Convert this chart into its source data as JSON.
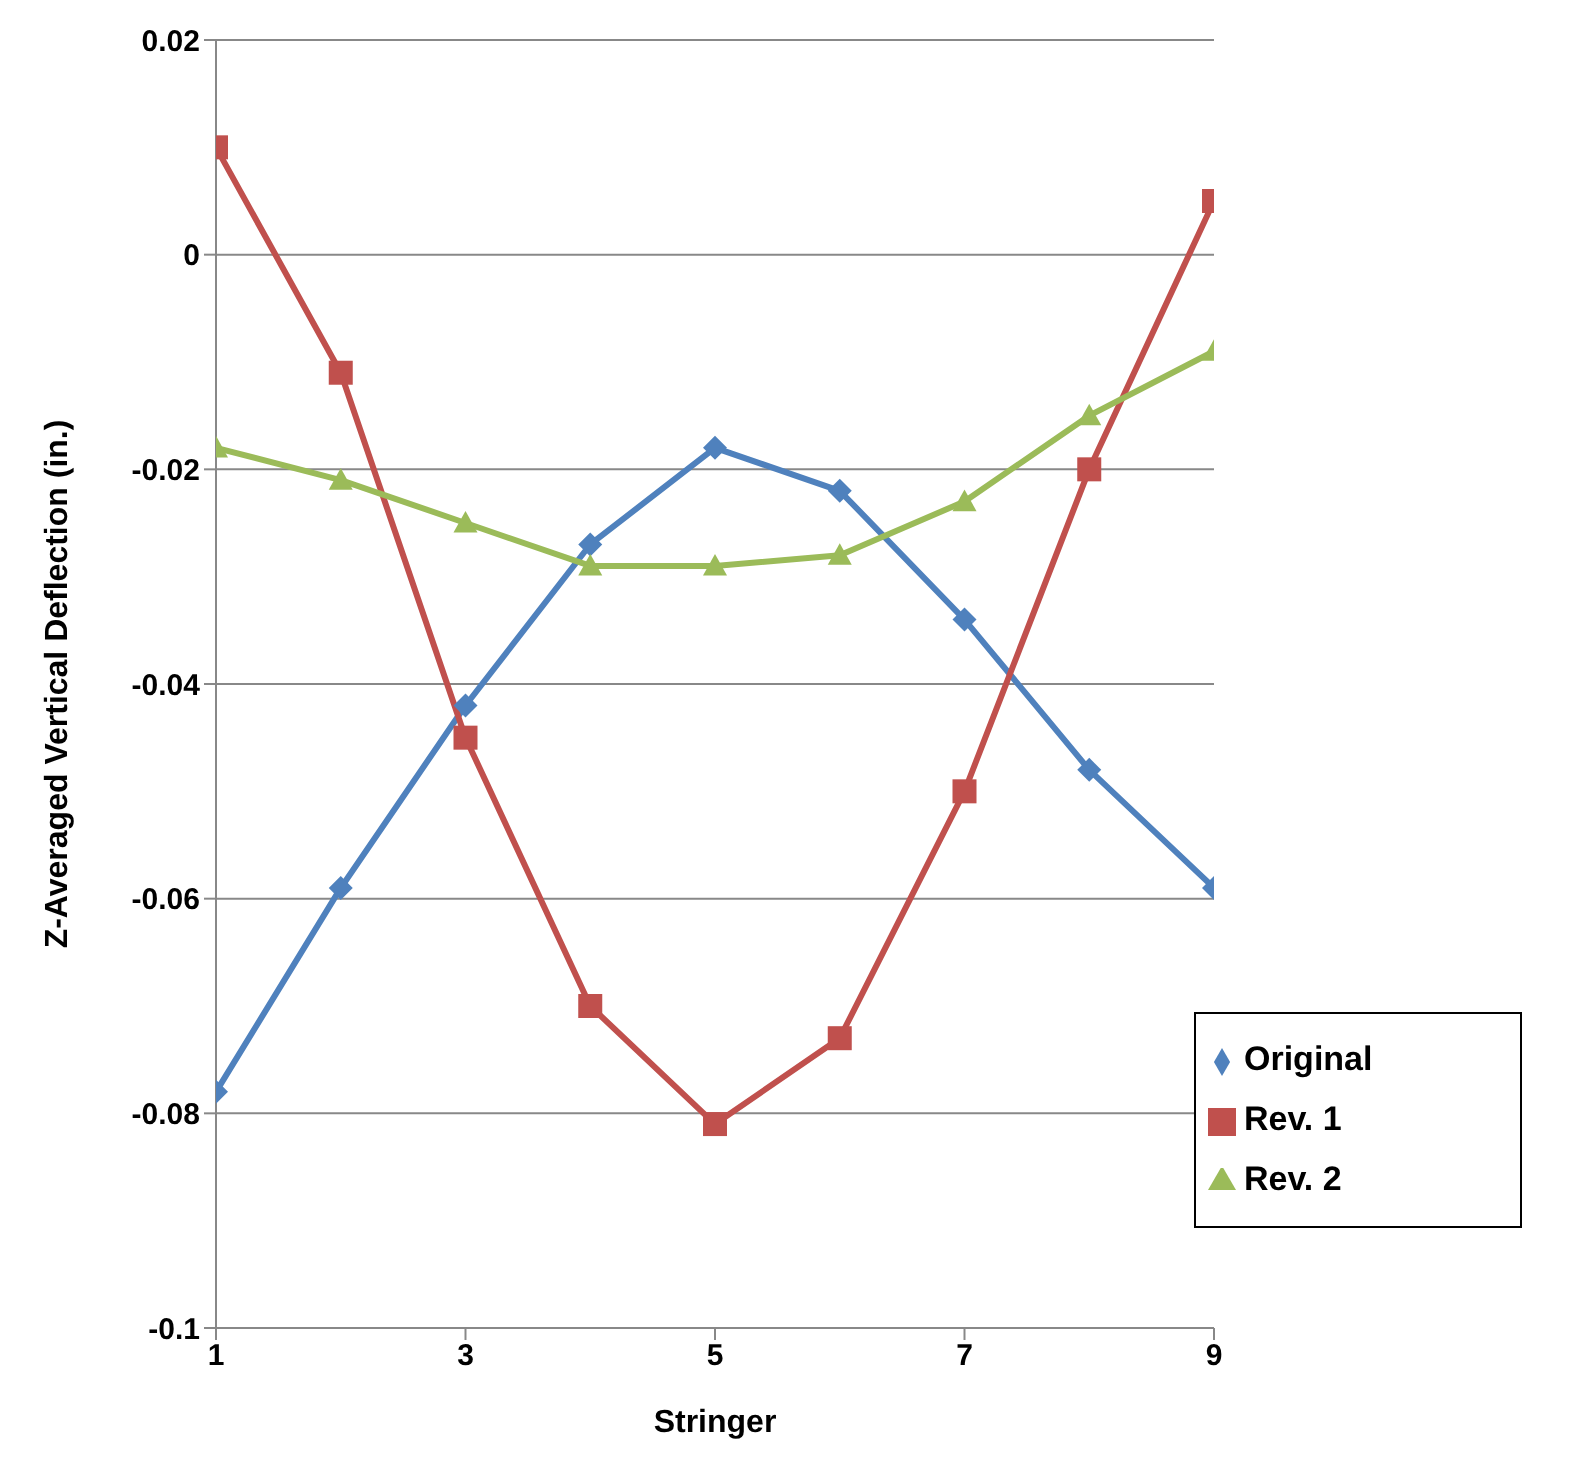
{
  "chart_data": {
    "type": "line",
    "xlabel": "Stringer",
    "ylabel": "Z-Averaged Vertical Deflection (in.)",
    "x": [
      1,
      2,
      3,
      4,
      5,
      6,
      7,
      8,
      9
    ],
    "xlim": [
      1,
      9
    ],
    "xticks": [
      1,
      3,
      5,
      7,
      9
    ],
    "ylim": [
      -0.1,
      0.02
    ],
    "yticks": [
      {
        "value": -0.1,
        "label": "-0.1"
      },
      {
        "value": -0.08,
        "label": "-0.08"
      },
      {
        "value": -0.06,
        "label": "-0.06"
      },
      {
        "value": -0.04,
        "label": "-0.04"
      },
      {
        "value": -0.02,
        "label": "-0.02"
      },
      {
        "value": 0,
        "label": "0"
      },
      {
        "value": 0.02,
        "label": "0.02"
      }
    ],
    "grid": "y",
    "legend": "bottom right",
    "series": [
      {
        "name": "Original",
        "color": "#4f81bd",
        "marker": "diamond",
        "values": [
          -0.078,
          -0.059,
          -0.042,
          -0.027,
          -0.018,
          -0.022,
          -0.034,
          -0.048,
          -0.059
        ]
      },
      {
        "name": "Rev. 1",
        "color": "#c0504d",
        "marker": "square",
        "values": [
          0.01,
          -0.011,
          -0.045,
          -0.07,
          -0.081,
          -0.073,
          -0.05,
          -0.02,
          0.005
        ]
      },
      {
        "name": "Rev. 2",
        "color": "#9bbb59",
        "marker": "triangle",
        "values": [
          -0.018,
          -0.021,
          -0.025,
          -0.029,
          -0.029,
          -0.028,
          -0.023,
          -0.015,
          -0.009
        ]
      }
    ]
  }
}
